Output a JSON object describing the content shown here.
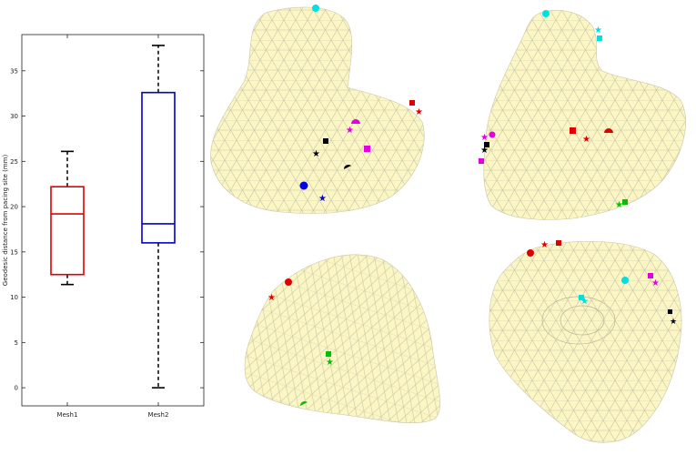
{
  "chart_data": {
    "type": "box",
    "title": "",
    "xlabel": "",
    "ylabel": "Geodesic distance from pacing site (mm)",
    "ylim": [
      -2,
      39
    ],
    "yticks": [
      0,
      5,
      10,
      15,
      20,
      25,
      30,
      35
    ],
    "grid": false,
    "categories": [
      "Mesh1",
      "Mesh2"
    ],
    "boxes": [
      {
        "name": "Mesh1",
        "color": "#e00000",
        "min": 11.4,
        "q1": 12.5,
        "median": 19.2,
        "q3": 22.2,
        "max": 26.1
      },
      {
        "name": "Mesh2",
        "color": "#0000c8",
        "min": 0.0,
        "q1": 16.0,
        "median": 18.1,
        "q3": 32.6,
        "max": 37.8
      }
    ]
  },
  "meshes": {
    "fill_color": "#fbf6c4",
    "edge_color": "#c9c6a8",
    "marker_colors": [
      "#e00000",
      "#0000e0",
      "#00c000",
      "#000000",
      "#e000e0",
      "#00e0e0"
    ]
  }
}
